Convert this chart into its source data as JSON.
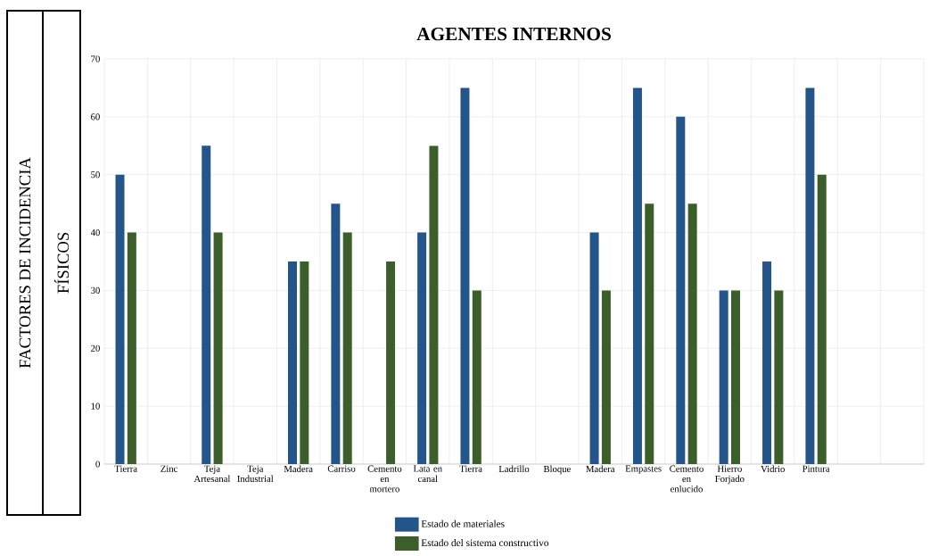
{
  "chart_data": {
    "type": "bar",
    "title": "AGENTES INTERNOS",
    "annotations": [
      "FACTORES DE INCIDENCIA",
      "FÍSICOS"
    ],
    "categories": [
      "Tierra",
      "Zinc",
      "Teja Artesanal",
      "Teja Industrial",
      "Madera",
      "Carriso",
      "Cemento en mortero",
      "Lata en canal",
      "Tierra",
      "Ladrillo",
      "Bloque",
      "Madera",
      "Empastes",
      "Cemento en enlucido",
      "Hierro Forjado",
      "Vidrio",
      "Pintura",
      null,
      null
    ],
    "series": [
      {
        "name": "Estado de materiales",
        "color": "#24558a",
        "values": [
          50,
          null,
          55,
          null,
          35,
          45,
          null,
          40,
          65,
          null,
          null,
          40,
          65,
          60,
          30,
          35,
          65,
          null,
          null
        ]
      },
      {
        "name": "Estado del sistema constructivo",
        "color": "#3b5e2b",
        "values": [
          40,
          null,
          40,
          null,
          35,
          40,
          35,
          55,
          30,
          null,
          null,
          30,
          45,
          45,
          30,
          30,
          50,
          null,
          null
        ]
      }
    ],
    "ylim": [
      0,
      70
    ],
    "yticks": [
      0,
      10,
      20,
      30,
      40,
      50,
      60,
      70
    ],
    "grid": true,
    "legend": "bottom"
  }
}
